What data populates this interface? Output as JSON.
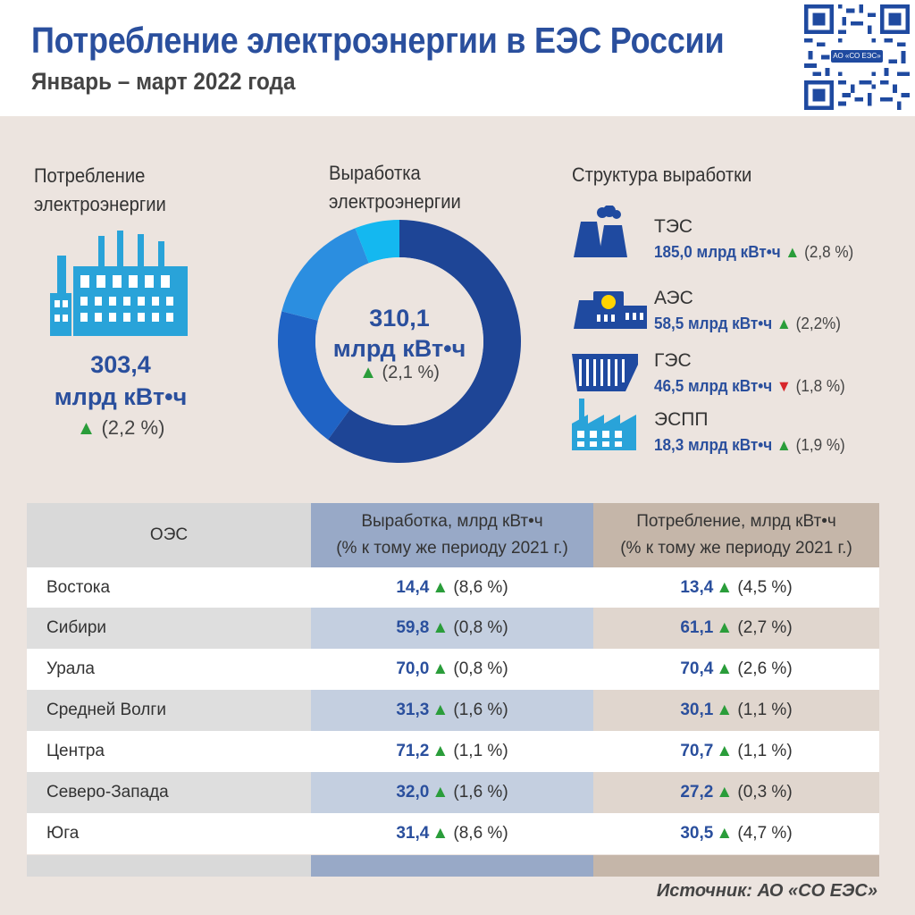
{
  "header": {
    "title": "Потребление электроэнергии в ЕЭС России",
    "subtitle": "Январь – март 2022 года",
    "qr_label": "АО «СО ЕЭС»"
  },
  "consumption": {
    "label_line1": "Потребление",
    "label_line2": "электроэнергии",
    "value": "303,4",
    "unit": "млрд кВт•ч",
    "arrow": "▲",
    "change": "(2,2 %)"
  },
  "generation": {
    "label_line1": "Выработка",
    "label_line2": "электроэнергии",
    "value": "310,1",
    "unit": "млрд кВт•ч",
    "arrow": "▲",
    "change": "(2,1 %)"
  },
  "structure": {
    "title": "Структура выработки",
    "items": [
      {
        "name": "ТЭС",
        "value": "185,0 млрд кВт•ч",
        "arrow": "▲",
        "direction": "up",
        "change": "(2,8 %)",
        "icon": "thermal-plant-icon"
      },
      {
        "name": "АЭС",
        "value": "58,5 млрд кВт•ч",
        "arrow": "▲",
        "direction": "up",
        "change": "(2,2%)",
        "icon": "nuclear-plant-icon"
      },
      {
        "name": "ГЭС",
        "value": "46,5 млрд кВт•ч",
        "arrow": "▼",
        "direction": "down",
        "change": "(1,8 %)",
        "icon": "hydro-plant-icon"
      },
      {
        "name": "ЭСПП",
        "value": "18,3 млрд кВт•ч",
        "arrow": "▲",
        "direction": "up",
        "change": "(1,9 %)",
        "icon": "industrial-plant-icon"
      }
    ]
  },
  "table": {
    "headers": {
      "col1": "ОЭС",
      "col2_line1": "Выработка, млрд кВт•ч",
      "col2_line2": "(% к тому же периоду 2021 г.)",
      "col3_line1": "Потребление, млрд кВт•ч",
      "col3_line2": "(% к тому же периоду 2021 г.)"
    },
    "rows": [
      {
        "name": "Востока",
        "gen": "14,4",
        "gen_change": "(8,6 %)",
        "cons": "13,4",
        "cons_change": "(4,5 %)"
      },
      {
        "name": "Сибири",
        "gen": "59,8",
        "gen_change": "(0,8 %)",
        "cons": "61,1",
        "cons_change": "(2,7 %)"
      },
      {
        "name": "Урала",
        "gen": "70,0",
        "gen_change": "(0,8 %)",
        "cons": "70,4",
        "cons_change": "(2,6 %)"
      },
      {
        "name": "Средней Волги",
        "gen": "31,3",
        "gen_change": "(1,6 %)",
        "cons": "30,1",
        "cons_change": "(1,1 %)"
      },
      {
        "name": "Центра",
        "gen": "71,2",
        "gen_change": "(1,1 %)",
        "cons": "70,7",
        "cons_change": "(1,1 %)"
      },
      {
        "name": "Северо-Запада",
        "gen": "32,0",
        "gen_change": "(1,6 %)",
        "cons": "27,2",
        "cons_change": "(0,3 %)"
      },
      {
        "name": "Юга",
        "gen": "31,4",
        "gen_change": "(8,6 %)",
        "cons": "30,5",
        "cons_change": "(4,7 %)"
      }
    ],
    "arrow": "▲"
  },
  "source": "Источник: АО «СО ЕЭС»",
  "colors": {
    "title": "#2a4f9d",
    "up": "#2a9d3a",
    "down": "#d8262b",
    "icon": "#29a3d9"
  },
  "chart_data": {
    "type": "pie",
    "donut": true,
    "categories": [
      "ТЭС",
      "АЭС",
      "ГЭС",
      "ЭСПП"
    ],
    "values": [
      185.0,
      58.5,
      46.5,
      18.3
    ],
    "colors": [
      "#1e4596",
      "#1f63c5",
      "#2b8ee0",
      "#14b8f0"
    ],
    "center_value": "310,1",
    "center_unit": "млрд кВт•ч"
  }
}
